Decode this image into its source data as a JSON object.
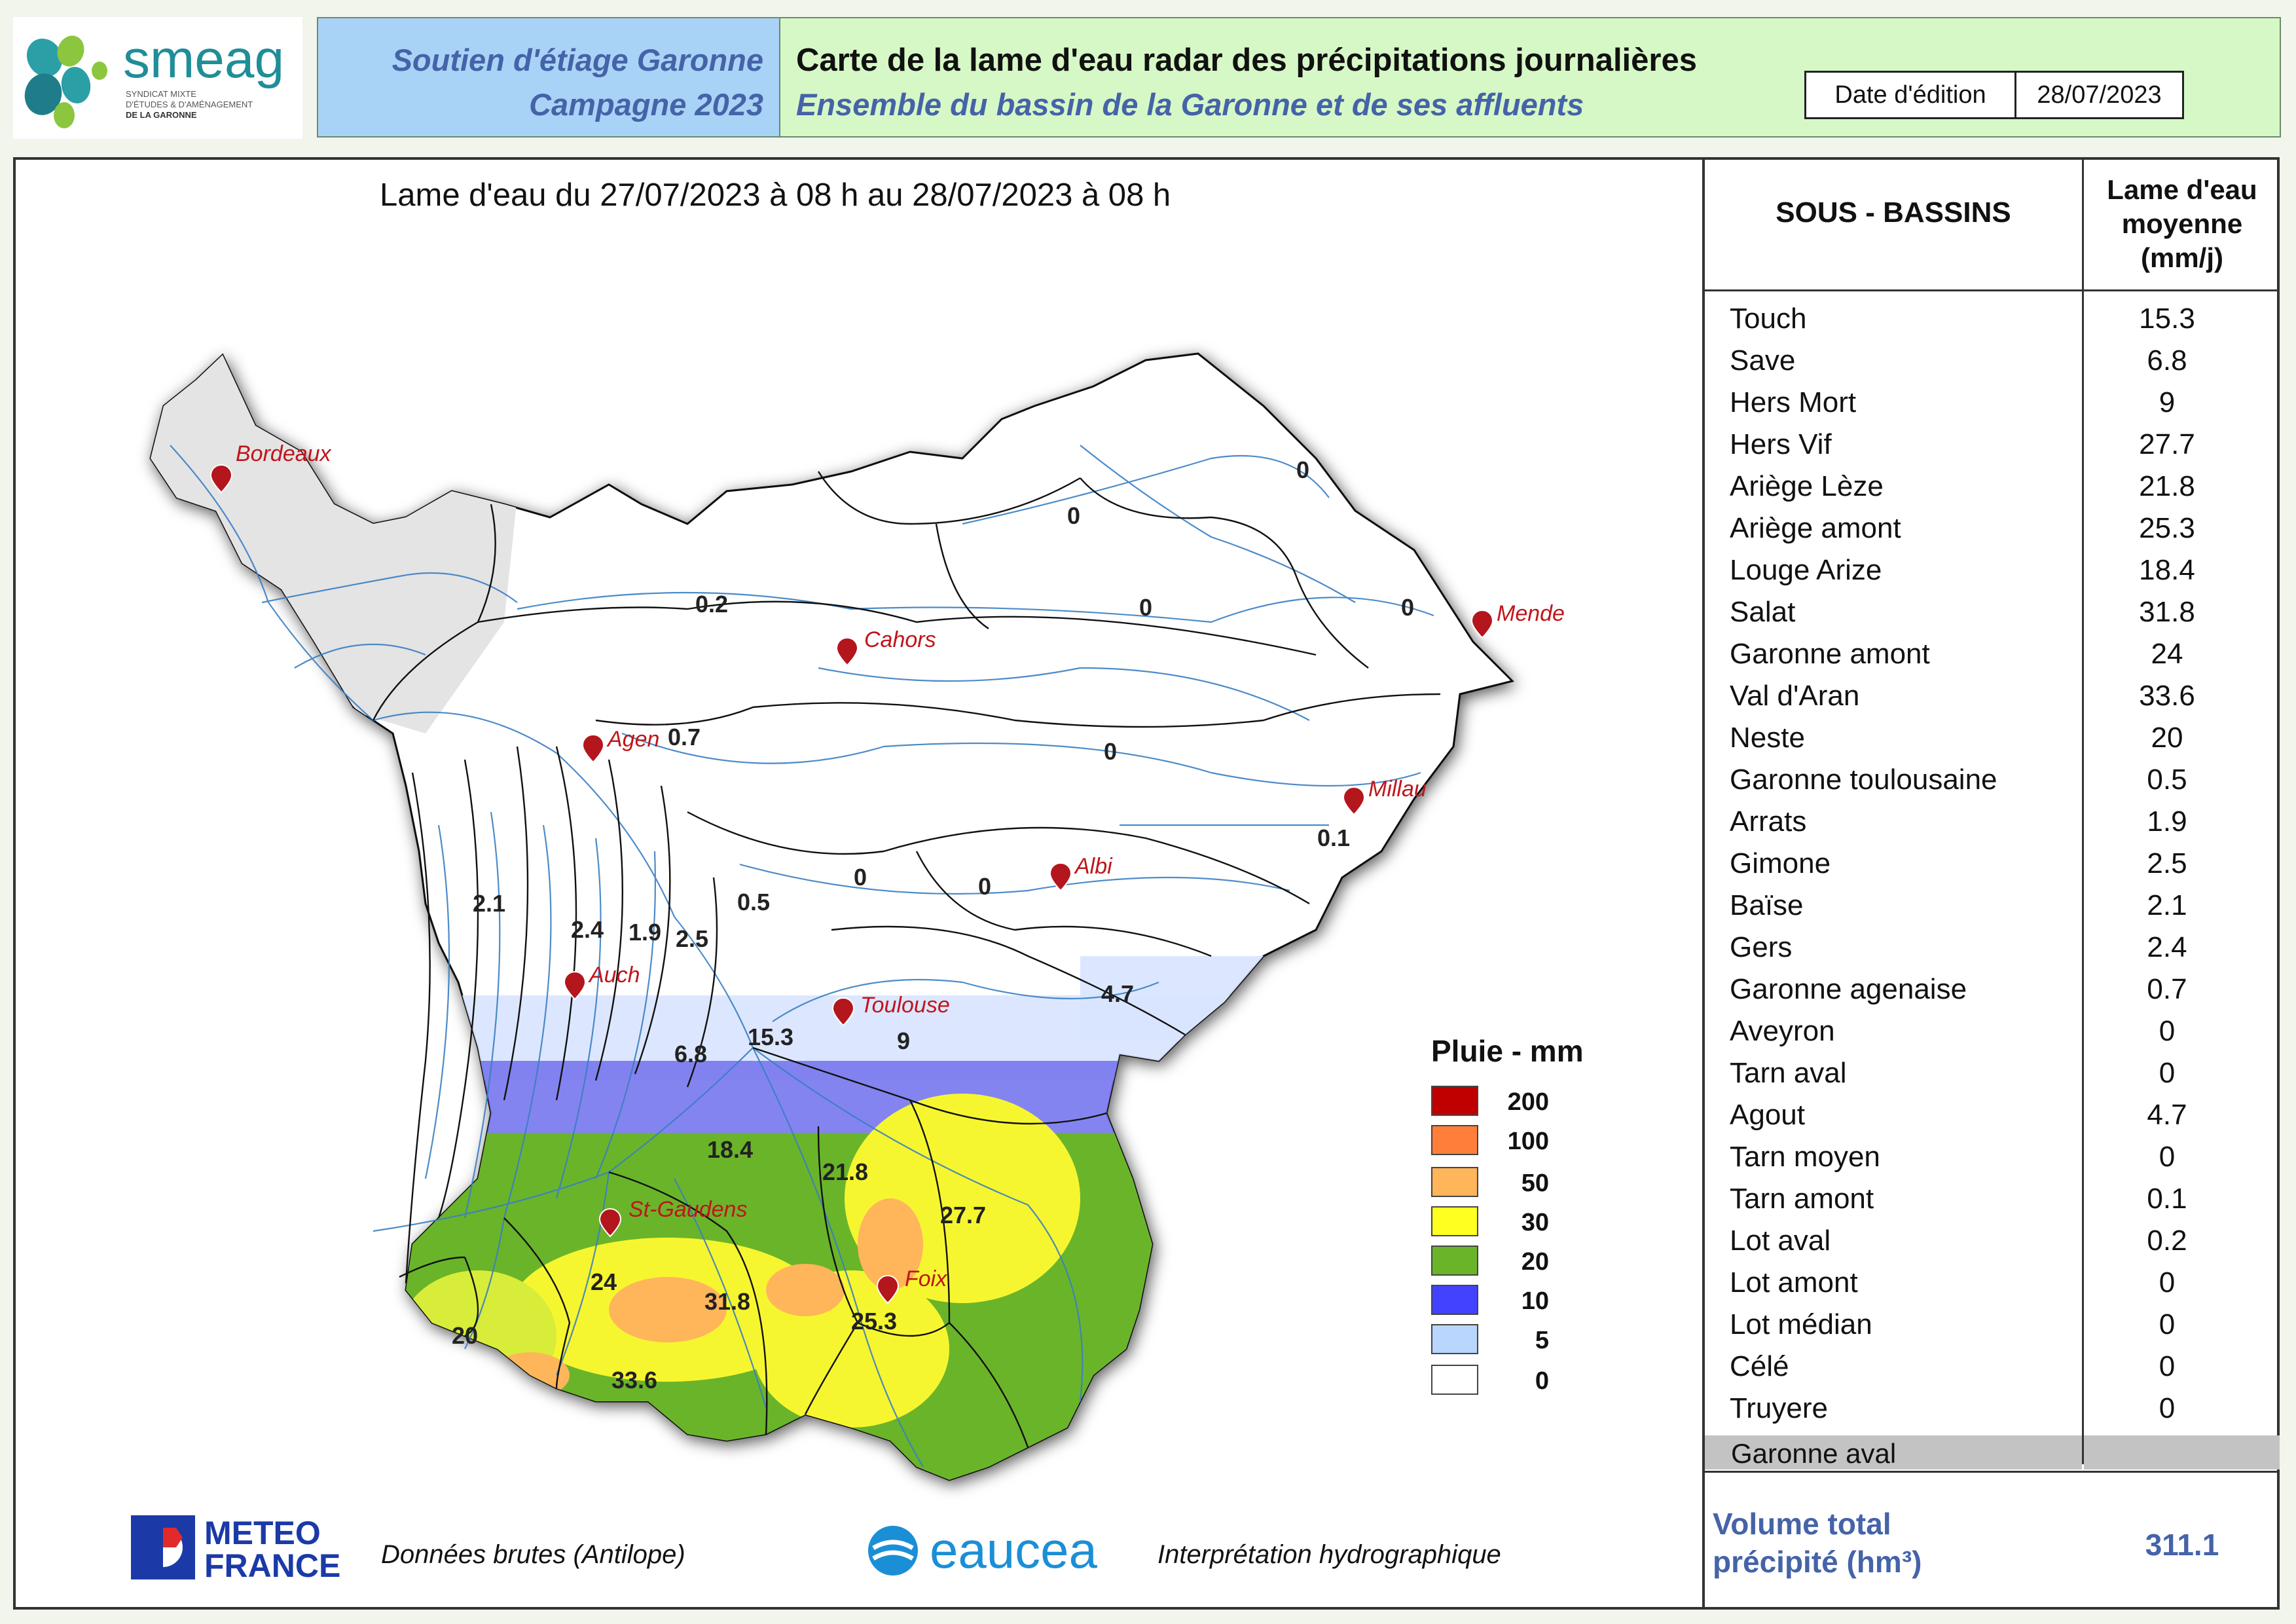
{
  "header": {
    "logo_text": "smeag",
    "logo_subtitle_lines": [
      "SYNDICAT MIXTE",
      "D'ÉTUDES & D'AMÉNAGEMENT",
      "DE LA GARONNE"
    ],
    "left_line1": "Soutien d'étiage Garonne",
    "left_line2": "Campagne 2023",
    "title": "Carte de la lame d'eau radar des précipitations journalières",
    "subtitle": "Ensemble du bassin de la Garonne et de ses affluents",
    "date_label": "Date d'édition",
    "date_value": "28/07/2023"
  },
  "period": "Lame d'eau du 27/07/2023  à 08 h au  28/07/2023   à 08 h",
  "map": {
    "cities": [
      {
        "name": "Bordeaux"
      },
      {
        "name": "Cahors"
      },
      {
        "name": "Mende"
      },
      {
        "name": "Agen"
      },
      {
        "name": "Millau"
      },
      {
        "name": "Albi"
      },
      {
        "name": "Auch"
      },
      {
        "name": "Toulouse"
      },
      {
        "name": "St-Gaudens"
      },
      {
        "name": "Foix"
      }
    ],
    "basin_values": [
      "0",
      "0",
      "0.2",
      "0",
      "0",
      "0.7",
      "0",
      "0.1",
      "0",
      "0",
      "2.1",
      "2.4",
      "1.9",
      "2.5",
      "0.5",
      "4.7",
      "9",
      "15.3",
      "6.8",
      "18.4",
      "21.8",
      "27.7",
      "24",
      "31.8",
      "25.3",
      "20",
      "33.6"
    ]
  },
  "legend": {
    "title": "Pluie - mm",
    "items": [
      {
        "value": "200",
        "color": "#c00000"
      },
      {
        "value": "100",
        "color": "#ff7f3a"
      },
      {
        "value": "50",
        "color": "#ffb55a"
      },
      {
        "value": "30",
        "color": "#ffff20"
      },
      {
        "value": "20",
        "color": "#6ab42a"
      },
      {
        "value": "10",
        "color": "#4343ff"
      },
      {
        "value": "5",
        "color": "#b9d6ff"
      },
      {
        "value": "0",
        "color": "#ffffff"
      }
    ]
  },
  "table": {
    "header_basin": "SOUS - BASSINS",
    "header_value_lines": [
      "Lame d'eau",
      "moyenne",
      "(mm/j)"
    ],
    "rows": [
      {
        "name": "Touch",
        "value": "15.3"
      },
      {
        "name": "Save",
        "value": "6.8"
      },
      {
        "name": "Hers Mort",
        "value": "9"
      },
      {
        "name": "Hers Vif",
        "value": "27.7"
      },
      {
        "name": "Ariège Lèze",
        "value": "21.8"
      },
      {
        "name": "Ariège amont",
        "value": "25.3"
      },
      {
        "name": "Louge Arize",
        "value": "18.4"
      },
      {
        "name": "Salat",
        "value": "31.8"
      },
      {
        "name": "Garonne amont",
        "value": "24"
      },
      {
        "name": "Val d'Aran",
        "value": "33.6"
      },
      {
        "name": "Neste",
        "value": "20"
      },
      {
        "name": "Garonne toulousaine",
        "value": "0.5"
      },
      {
        "name": "Arrats",
        "value": "1.9"
      },
      {
        "name": "Gimone",
        "value": "2.5"
      },
      {
        "name": "Baïse",
        "value": "2.1"
      },
      {
        "name": "Gers",
        "value": "2.4"
      },
      {
        "name": "Garonne agenaise",
        "value": "0.7"
      },
      {
        "name": "Aveyron",
        "value": "0"
      },
      {
        "name": "Tarn aval",
        "value": "0"
      },
      {
        "name": "Agout",
        "value": "4.7"
      },
      {
        "name": "Tarn moyen",
        "value": "0"
      },
      {
        "name": "Tarn amont",
        "value": "0.1"
      },
      {
        "name": "Lot aval",
        "value": "0.2"
      },
      {
        "name": "Lot amont",
        "value": "0"
      },
      {
        "name": "Lot médian",
        "value": "0"
      },
      {
        "name": "Célé",
        "value": "0"
      },
      {
        "name": "Truyere",
        "value": "0"
      }
    ],
    "garonne_aval_label": "Garonne aval",
    "volume_label_lines": [
      "Volume total",
      "précipité (hm³)"
    ],
    "volume_value": "311.1"
  },
  "footer": {
    "meteo_logo_lines": [
      "METEO",
      "FRANCE"
    ],
    "meteo_caption": "Données brutes (Antilope)",
    "eaucea_logo": "eaucea",
    "eaucea_caption": "Interprétation hydrographique"
  }
}
